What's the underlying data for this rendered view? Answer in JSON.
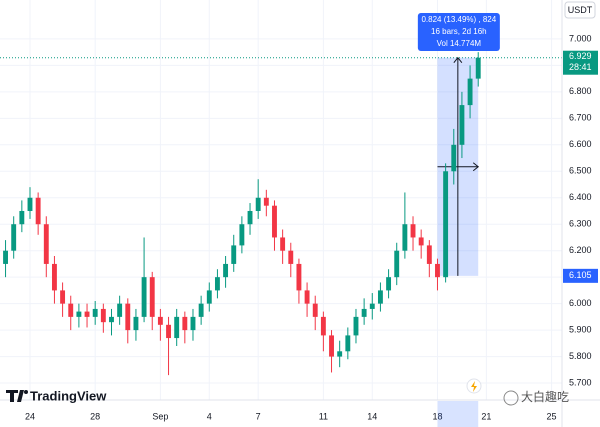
{
  "chart_data": {
    "type": "candlestick",
    "currency": "USDT",
    "brand": "TradingView",
    "watermark": "大白趣吃",
    "up_color": "#089981",
    "down_color": "#f23645",
    "xlim": [
      -1.84,
      32.64
    ],
    "xticks": [
      {
        "value": 0,
        "label": "24"
      },
      {
        "value": 4,
        "label": "28"
      },
      {
        "value": 8,
        "label": "Sep"
      },
      {
        "value": 11,
        "label": "4"
      },
      {
        "value": 14,
        "label": "7"
      },
      {
        "value": 18,
        "label": "11"
      },
      {
        "value": 21,
        "label": "14"
      },
      {
        "value": 25,
        "label": "18"
      },
      {
        "value": 28,
        "label": "21"
      },
      {
        "value": 32,
        "label": "25"
      }
    ],
    "ylim": [
      5.636,
      7.147
    ],
    "yticks": [
      {
        "value": 5.7,
        "label": "5.700"
      },
      {
        "value": 5.8,
        "label": "5.800"
      },
      {
        "value": 5.9,
        "label": "5.900"
      },
      {
        "value": 6.0,
        "label": "6.000"
      },
      {
        "value": 6.1,
        "label": "6.100"
      },
      {
        "value": 6.2,
        "label": "6.200"
      },
      {
        "value": 6.3,
        "label": "6.300"
      },
      {
        "value": 6.4,
        "label": "6.400"
      },
      {
        "value": 6.5,
        "label": "6.500"
      },
      {
        "value": 6.6,
        "label": "6.600"
      },
      {
        "value": 6.7,
        "label": "6.700"
      },
      {
        "value": 6.8,
        "label": "6.800"
      },
      {
        "value": 6.9,
        "label": "6.900"
      },
      {
        "value": 7.0,
        "label": "7.000"
      }
    ],
    "x": [
      -1.5,
      -1,
      -0.5,
      0,
      0.5,
      1,
      1.5,
      2,
      2.5,
      3,
      3.5,
      4,
      4.5,
      5,
      5.5,
      6,
      6.5,
      7,
      7.5,
      8,
      8.5,
      9,
      9.5,
      10,
      10.5,
      11,
      11.5,
      12,
      12.5,
      13,
      13.5,
      14,
      14.5,
      15,
      15.5,
      16,
      16.5,
      17,
      17.5,
      18,
      18.5,
      19,
      19.5,
      20,
      20.5,
      21,
      21.5,
      22,
      22.5,
      23,
      23.5,
      24,
      24.5,
      25,
      25.5,
      26,
      26.5,
      27,
      27.5
    ],
    "open": [
      6.15,
      6.2,
      6.3,
      6.35,
      6.4,
      6.3,
      6.15,
      6.05,
      6.0,
      5.95,
      5.97,
      5.95,
      5.98,
      5.93,
      5.95,
      6.0,
      5.9,
      5.95,
      6.1,
      5.95,
      5.92,
      5.87,
      5.95,
      5.9,
      5.95,
      6.0,
      6.05,
      6.1,
      6.15,
      6.22,
      6.3,
      6.35,
      6.4,
      6.37,
      6.25,
      6.2,
      6.15,
      6.05,
      6.0,
      5.95,
      5.88,
      5.8,
      5.82,
      5.88,
      5.95,
      5.98,
      6.0,
      6.05,
      6.1,
      6.2,
      6.3,
      6.25,
      6.22,
      6.15,
      6.1,
      6.5,
      6.6,
      6.75,
      6.85
    ],
    "high": [
      6.24,
      6.33,
      6.39,
      6.44,
      6.42,
      6.33,
      6.18,
      6.08,
      6.03,
      6.0,
      6.0,
      6.01,
      6.0,
      5.98,
      6.03,
      6.02,
      5.98,
      6.25,
      6.12,
      5.98,
      5.95,
      5.98,
      5.97,
      5.98,
      6.03,
      6.08,
      6.13,
      6.18,
      6.26,
      6.33,
      6.38,
      6.47,
      6.43,
      6.39,
      6.28,
      6.23,
      6.17,
      6.08,
      6.03,
      5.97,
      5.9,
      5.86,
      5.91,
      5.98,
      6.02,
      6.04,
      6.08,
      6.13,
      6.23,
      6.42,
      6.33,
      6.28,
      6.24,
      6.17,
      6.53,
      6.66,
      6.8,
      6.9,
      6.95
    ],
    "low": [
      6.1,
      6.17,
      6.27,
      6.32,
      6.26,
      6.1,
      6.0,
      5.95,
      5.9,
      5.91,
      5.91,
      5.92,
      5.89,
      5.88,
      5.92,
      5.85,
      5.86,
      5.93,
      5.9,
      5.86,
      5.73,
      5.84,
      5.85,
      5.86,
      5.92,
      5.97,
      6.02,
      6.06,
      6.12,
      6.19,
      6.26,
      6.32,
      6.33,
      6.2,
      6.15,
      6.1,
      6.0,
      5.95,
      5.9,
      5.82,
      5.74,
      5.76,
      5.79,
      5.85,
      5.92,
      5.94,
      5.97,
      6.02,
      6.07,
      6.17,
      6.2,
      6.17,
      6.1,
      6.05,
      6.08,
      6.45,
      6.55,
      6.7,
      6.82
    ],
    "close": [
      6.2,
      6.3,
      6.35,
      6.4,
      6.3,
      6.15,
      6.05,
      6.0,
      5.95,
      5.97,
      5.95,
      5.98,
      5.93,
      5.95,
      6.0,
      5.9,
      5.95,
      6.1,
      5.95,
      5.92,
      5.87,
      5.95,
      5.9,
      5.95,
      6.0,
      6.05,
      6.1,
      6.15,
      6.22,
      6.3,
      6.35,
      6.4,
      6.37,
      6.25,
      6.2,
      6.15,
      6.05,
      6.0,
      5.95,
      5.88,
      5.8,
      5.82,
      5.88,
      5.95,
      5.98,
      6.0,
      6.05,
      6.1,
      6.2,
      6.3,
      6.25,
      6.22,
      6.15,
      6.1,
      6.5,
      6.6,
      6.75,
      6.85,
      6.929
    ],
    "last_price": {
      "value": 6.929,
      "label": "6.929"
    },
    "countdown": "28:41",
    "measure": {
      "from_x": 25,
      "to_x": 27.5,
      "from_price": {
        "value": 6.105,
        "label": "6.105"
      },
      "to_price": 6.929,
      "lines": [
        "0.824 (13.49%) , 824",
        "16 bars, 2d 16h",
        "Vol 14.774M"
      ]
    }
  }
}
